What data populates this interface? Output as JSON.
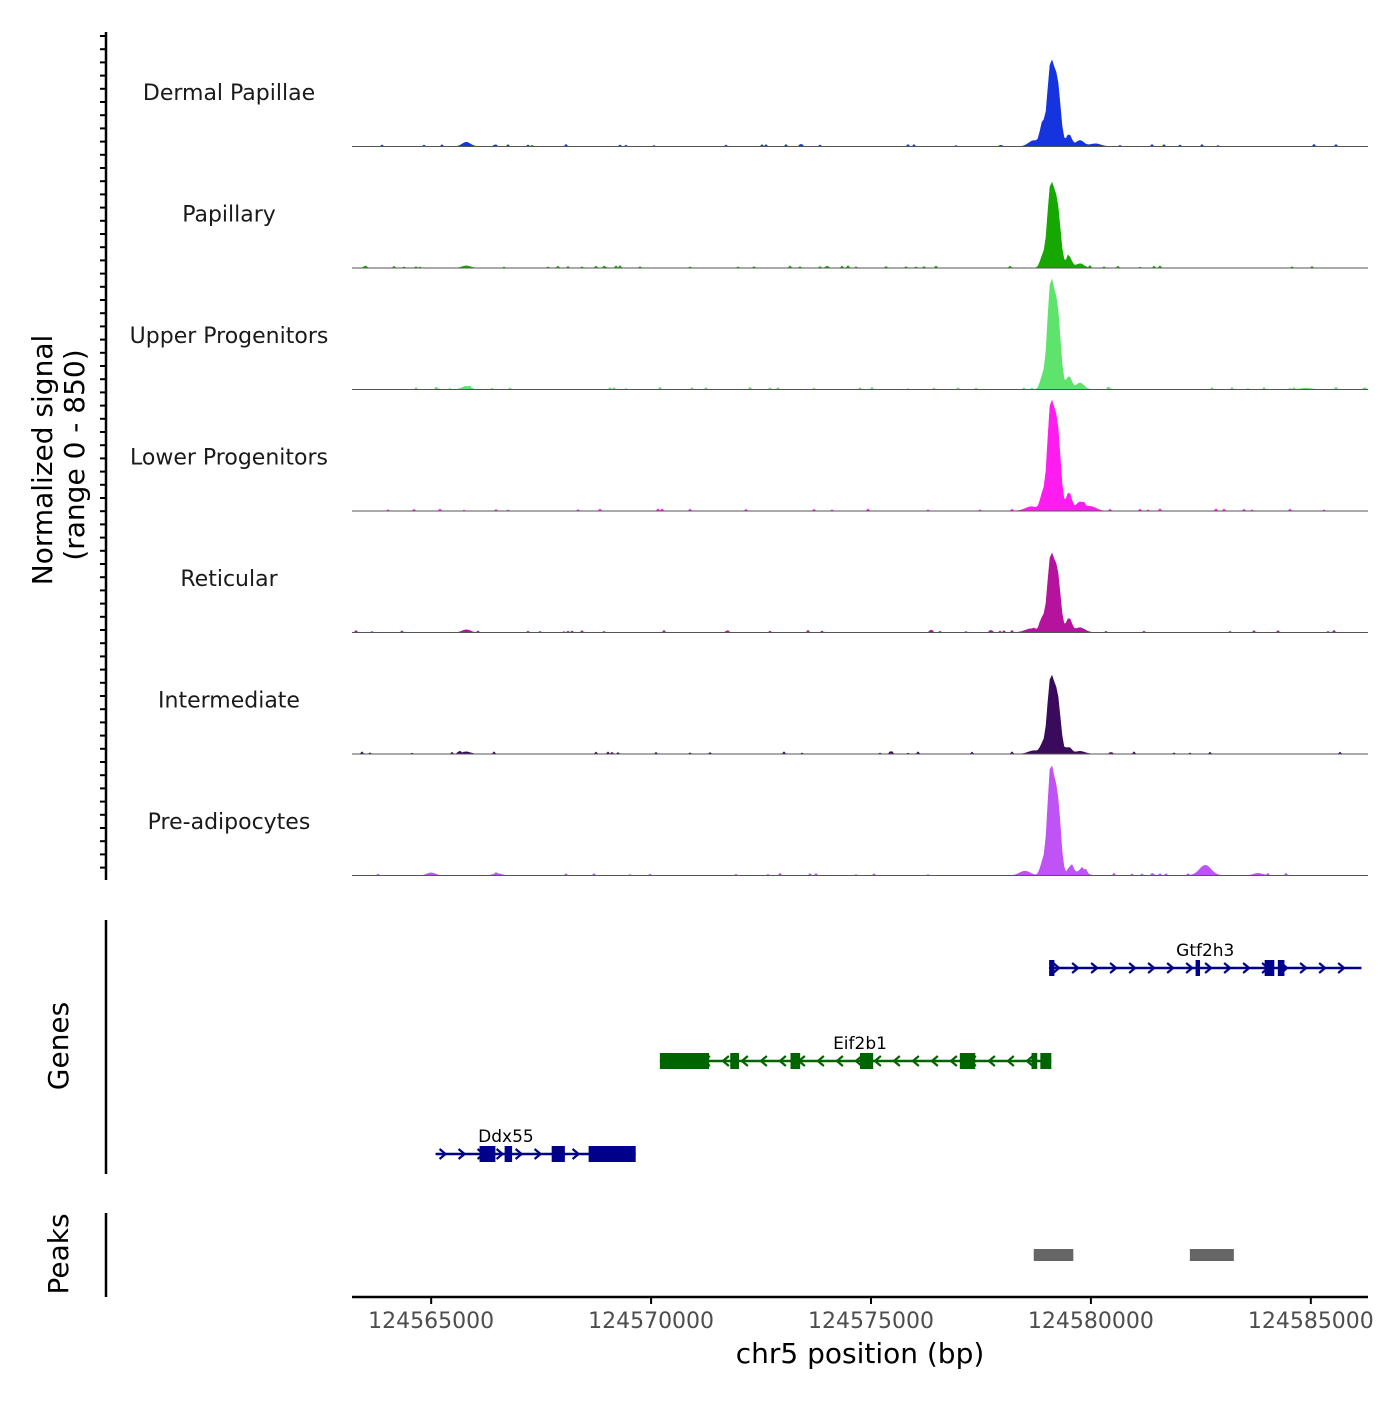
{
  "chart_data": {
    "type": "area",
    "title": "",
    "xlabel": "chr5 position (bp)",
    "ylabel": "Normalized signal\n(range 0 - 850)",
    "ylabel_lines": [
      "Normalized signal",
      "(range 0 - 850)"
    ],
    "ylim": [
      0,
      850
    ],
    "xlim": [
      124563200,
      124586300
    ],
    "xticks": [
      124565000,
      124570000,
      124575000,
      124580000,
      124585000
    ],
    "xtick_labels": [
      "124565000",
      "124570000",
      "124575000",
      "124580000",
      "124585000"
    ],
    "series": [
      {
        "name": "Dermal Papillae",
        "color": "#1533de",
        "peaks": [
          {
            "x": 124565800,
            "y": 40,
            "w": 90
          },
          {
            "x": 124578700,
            "y": 55,
            "w": 110
          },
          {
            "x": 124578900,
            "y": 200,
            "w": 55
          },
          {
            "x": 124579080,
            "y": 700,
            "w": 70
          },
          {
            "x": 124579230,
            "y": 580,
            "w": 75
          },
          {
            "x": 124579500,
            "y": 110,
            "w": 60
          },
          {
            "x": 124579750,
            "y": 55,
            "w": 90
          },
          {
            "x": 124580100,
            "y": 25,
            "w": 120
          }
        ]
      },
      {
        "name": "Papillary",
        "color": "#16a800",
        "peaks": [
          {
            "x": 124565800,
            "y": 20,
            "w": 90
          },
          {
            "x": 124578900,
            "y": 100,
            "w": 55
          },
          {
            "x": 124579080,
            "y": 700,
            "w": 70
          },
          {
            "x": 124579230,
            "y": 560,
            "w": 75
          },
          {
            "x": 124579500,
            "y": 105,
            "w": 60
          },
          {
            "x": 124579750,
            "y": 40,
            "w": 90
          }
        ]
      },
      {
        "name": "Upper Progenitors",
        "color": "#5ee36c",
        "peaks": [
          {
            "x": 124565800,
            "y": 30,
            "w": 90
          },
          {
            "x": 124578900,
            "y": 110,
            "w": 55
          },
          {
            "x": 124579080,
            "y": 900,
            "w": 70
          },
          {
            "x": 124579230,
            "y": 720,
            "w": 75
          },
          {
            "x": 124579500,
            "y": 120,
            "w": 60
          },
          {
            "x": 124579750,
            "y": 60,
            "w": 90
          },
          {
            "x": 124584900,
            "y": 12,
            "w": 120
          }
        ]
      },
      {
        "name": "Lower Progenitors",
        "color": "#ff1cf0",
        "peaks": [
          {
            "x": 124578650,
            "y": 40,
            "w": 140
          },
          {
            "x": 124578900,
            "y": 140,
            "w": 55
          },
          {
            "x": 124579080,
            "y": 900,
            "w": 70
          },
          {
            "x": 124579230,
            "y": 760,
            "w": 75
          },
          {
            "x": 124579500,
            "y": 170,
            "w": 60
          },
          {
            "x": 124579750,
            "y": 80,
            "w": 90
          },
          {
            "x": 124580000,
            "y": 40,
            "w": 120
          }
        ]
      },
      {
        "name": "Reticular",
        "color": "#b5129e",
        "peaks": [
          {
            "x": 124565800,
            "y": 25,
            "w": 90
          },
          {
            "x": 124578650,
            "y": 35,
            "w": 140
          },
          {
            "x": 124578900,
            "y": 120,
            "w": 55
          },
          {
            "x": 124579080,
            "y": 640,
            "w": 70
          },
          {
            "x": 124579230,
            "y": 540,
            "w": 75
          },
          {
            "x": 124579500,
            "y": 130,
            "w": 60
          },
          {
            "x": 124579750,
            "y": 45,
            "w": 110
          }
        ]
      },
      {
        "name": "Intermediate",
        "color": "#3a0a5c",
        "peaks": [
          {
            "x": 124565800,
            "y": 20,
            "w": 90
          },
          {
            "x": 124578700,
            "y": 30,
            "w": 120
          },
          {
            "x": 124578900,
            "y": 80,
            "w": 55
          },
          {
            "x": 124579080,
            "y": 640,
            "w": 70
          },
          {
            "x": 124579230,
            "y": 520,
            "w": 75
          },
          {
            "x": 124579500,
            "y": 60,
            "w": 60
          },
          {
            "x": 124579750,
            "y": 25,
            "w": 110
          }
        ]
      },
      {
        "name": "Pre-adipocytes",
        "color": "#bf53f5",
        "peaks": [
          {
            "x": 124565000,
            "y": 25,
            "w": 90
          },
          {
            "x": 124566500,
            "y": 18,
            "w": 90
          },
          {
            "x": 124578500,
            "y": 40,
            "w": 120
          },
          {
            "x": 124578900,
            "y": 110,
            "w": 55
          },
          {
            "x": 124579080,
            "y": 900,
            "w": 70
          },
          {
            "x": 124579230,
            "y": 700,
            "w": 75
          },
          {
            "x": 124579550,
            "y": 90,
            "w": 60
          },
          {
            "x": 124579800,
            "y": 60,
            "w": 90
          },
          {
            "x": 124582600,
            "y": 95,
            "w": 130
          },
          {
            "x": 124583800,
            "y": 20,
            "w": 100
          }
        ]
      }
    ],
    "genes": [
      {
        "name": "Gtf2h3",
        "strand": "+",
        "color": "#00008b",
        "start": 124579050,
        "end": 124586150,
        "exons": [
          [
            124579050,
            124579170
          ],
          [
            124582380,
            124582480
          ],
          [
            124583950,
            124584170
          ],
          [
            124584250,
            124584400
          ]
        ],
        "label_x": 124582600
      },
      {
        "name": "Eif2b1",
        "strand": "-",
        "color": "#006400",
        "start": 124570200,
        "end": 124579100,
        "exons": [
          [
            124570200,
            124571320
          ],
          [
            124571800,
            124572000
          ],
          [
            124573170,
            124573390
          ],
          [
            124574750,
            124575050
          ],
          [
            124577020,
            124577370
          ],
          [
            124578650,
            124578780
          ],
          [
            124578850,
            124579100
          ]
        ],
        "label_x": 124574750
      },
      {
        "name": "Ddx55",
        "strand": "+",
        "color": "#00008b",
        "start": 124565100,
        "end": 124569650,
        "exons": [
          [
            124566100,
            124566460
          ],
          [
            124566670,
            124566840
          ],
          [
            124567740,
            124568040
          ],
          [
            124568580,
            124569650
          ]
        ],
        "label_x": 124566700
      }
    ],
    "peaks": [
      {
        "start": 124578700,
        "end": 124579600
      },
      {
        "start": 124582250,
        "end": 124583250
      }
    ],
    "panels": [
      "Genes",
      "Peaks"
    ]
  }
}
